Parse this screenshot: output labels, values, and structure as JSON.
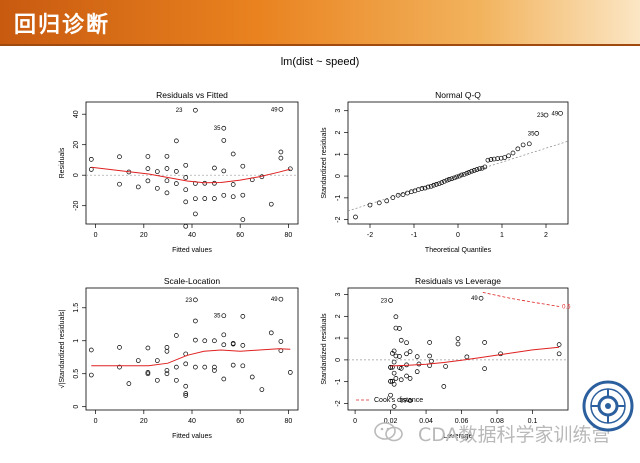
{
  "slide": {
    "title": "回归诊断"
  },
  "figure": {
    "title": "lm(dist ~ speed)"
  },
  "watermark": {
    "text": "CDA数据科学家训练营",
    "logo_icon": "wechat-bubble-icon",
    "seal_icon": "university-seal-icon"
  },
  "colors": {
    "header_start": "#c85a10",
    "header_end": "#fbe6c4",
    "smooth_line": "#e02020",
    "points": "#000000",
    "reference_line": "#888888"
  },
  "chart_data": [
    {
      "type": "scatter",
      "title": "Residuals vs Fitted",
      "xlabel": "Fitted values",
      "ylabel": "Residuals",
      "xlim": [
        -4,
        84
      ],
      "ylim": [
        -32,
        48
      ],
      "xticks": [
        0,
        20,
        40,
        60,
        80
      ],
      "yticks": [
        -20,
        0,
        20,
        40
      ],
      "points": [
        [
          -1.8,
          3.8
        ],
        [
          -1.8,
          10.4
        ],
        [
          9.9,
          -5.9
        ],
        [
          9.9,
          12.1
        ],
        [
          13.8,
          2.1
        ],
        [
          17.7,
          -7.7
        ],
        [
          21.7,
          -3.7
        ],
        [
          21.7,
          4.3
        ],
        [
          21.7,
          12.3
        ],
        [
          25.6,
          -8.6
        ],
        [
          25.6,
          2.4
        ],
        [
          29.6,
          -11.6
        ],
        [
          29.6,
          -3.6
        ],
        [
          29.6,
          4.4
        ],
        [
          29.6,
          12.4
        ],
        [
          33.5,
          -5.5
        ],
        [
          33.5,
          2.5
        ],
        [
          33.5,
          22.5
        ],
        [
          37.4,
          -33.5
        ],
        [
          37.4,
          -17.5
        ],
        [
          37.4,
          -9.5
        ],
        [
          37.4,
          -1.5
        ],
        [
          37.4,
          6.5
        ],
        [
          41.4,
          -25.4
        ],
        [
          41.4,
          -15.4
        ],
        [
          41.4,
          -5.4
        ],
        [
          41.4,
          42.6
        ],
        [
          45.3,
          -15.3
        ],
        [
          45.3,
          -5.3
        ],
        [
          49.3,
          -15.3
        ],
        [
          49.3,
          -5.3
        ],
        [
          49.3,
          4.7
        ],
        [
          53.2,
          -13.2
        ],
        [
          53.2,
          2.8
        ],
        [
          53.2,
          22.8
        ],
        [
          53.2,
          30.8
        ],
        [
          57.1,
          -14.1
        ],
        [
          57.1,
          -6.1
        ],
        [
          57.1,
          13.9
        ],
        [
          61.1,
          -29.1
        ],
        [
          61.1,
          -13.1
        ],
        [
          61.1,
          5.9
        ],
        [
          65.0,
          -3.0
        ],
        [
          69.0,
          -1.0
        ],
        [
          72.9,
          -19.0
        ],
        [
          76.9,
          11.2
        ],
        [
          76.9,
          15.2
        ],
        [
          76.9,
          43.2
        ],
        [
          80.8,
          4.2
        ]
      ],
      "smooth": [
        [
          -1.8,
          5.2
        ],
        [
          10,
          3.0
        ],
        [
          22,
          0.8
        ],
        [
          30,
          -1.5
        ],
        [
          38,
          -3.8
        ],
        [
          45,
          -5.0
        ],
        [
          52,
          -4.8
        ],
        [
          60,
          -3.2
        ],
        [
          68,
          -1.0
        ],
        [
          76,
          2.0
        ],
        [
          80.8,
          4.0
        ]
      ],
      "labels": [
        {
          "text": "23",
          "x": 37.4,
          "y": 42.6
        },
        {
          "text": "35",
          "x": 53.2,
          "y": 30.8
        },
        {
          "text": "49",
          "x": 76.9,
          "y": 43.2
        }
      ]
    },
    {
      "type": "scatter",
      "title": "Normal Q-Q",
      "xlabel": "Theoretical Quantiles",
      "ylabel": "Standardized residuals",
      "xlim": [
        -2.5,
        2.5
      ],
      "ylim": [
        -2.2,
        3.4
      ],
      "xticks": [
        -2,
        -1,
        0,
        1,
        2
      ],
      "yticks": [
        -2,
        -1,
        0,
        1,
        2,
        3
      ],
      "points": [
        [
          -2.33,
          -1.88
        ],
        [
          -2.0,
          -1.33
        ],
        [
          -1.79,
          -1.23
        ],
        [
          -1.62,
          -1.14
        ],
        [
          -1.48,
          -0.99
        ],
        [
          -1.36,
          -0.88
        ],
        [
          -1.25,
          -0.85
        ],
        [
          -1.15,
          -0.78
        ],
        [
          -1.06,
          -0.72
        ],
        [
          -0.98,
          -0.68
        ],
        [
          -0.9,
          -0.62
        ],
        [
          -0.82,
          -0.57
        ],
        [
          -0.75,
          -0.55
        ],
        [
          -0.68,
          -0.5
        ],
        [
          -0.61,
          -0.47
        ],
        [
          -0.55,
          -0.42
        ],
        [
          -0.49,
          -0.38
        ],
        [
          -0.43,
          -0.35
        ],
        [
          -0.37,
          -0.3
        ],
        [
          -0.31,
          -0.24
        ],
        [
          -0.25,
          -0.19
        ],
        [
          -0.2,
          -0.15
        ],
        [
          -0.14,
          -0.12
        ],
        [
          -0.08,
          -0.08
        ],
        [
          -0.03,
          -0.04
        ],
        [
          0.03,
          0.0
        ],
        [
          0.08,
          0.05
        ],
        [
          0.14,
          0.08
        ],
        [
          0.2,
          0.13
        ],
        [
          0.25,
          0.17
        ],
        [
          0.31,
          0.22
        ],
        [
          0.37,
          0.26
        ],
        [
          0.43,
          0.3
        ],
        [
          0.49,
          0.34
        ],
        [
          0.55,
          0.36
        ],
        [
          0.61,
          0.42
        ],
        [
          0.68,
          0.73
        ],
        [
          0.75,
          0.76
        ],
        [
          0.82,
          0.78
        ],
        [
          0.9,
          0.8
        ],
        [
          0.98,
          0.82
        ],
        [
          1.06,
          0.85
        ],
        [
          1.15,
          0.93
        ],
        [
          1.25,
          1.06
        ],
        [
          1.36,
          1.25
        ],
        [
          1.48,
          1.43
        ],
        [
          1.62,
          1.48
        ],
        [
          1.79,
          1.96
        ],
        [
          2.0,
          2.8
        ],
        [
          2.33,
          2.88
        ]
      ],
      "reference_line": [
        [
          -2.5,
          -1.6
        ],
        [
          2.5,
          1.6
        ]
      ],
      "labels": [
        {
          "text": "35",
          "x": 1.79,
          "y": 1.96
        },
        {
          "text": "23",
          "x": 2.0,
          "y": 2.8
        },
        {
          "text": "49",
          "x": 2.33,
          "y": 2.88
        }
      ]
    },
    {
      "type": "scatter",
      "title": "Scale-Location",
      "xlabel": "Fitted values",
      "ylabel": "√|Standardized residuals|",
      "xlim": [
        -4,
        84
      ],
      "ylim": [
        -0.05,
        1.8
      ],
      "xticks": [
        0,
        20,
        40,
        60,
        80
      ],
      "yticks": [
        0.0,
        0.5,
        1.0,
        1.5
      ],
      "points": [
        [
          -1.8,
          0.48
        ],
        [
          -1.8,
          0.86
        ],
        [
          9.9,
          0.6
        ],
        [
          9.9,
          0.9
        ],
        [
          13.8,
          0.35
        ],
        [
          17.7,
          0.7
        ],
        [
          21.7,
          0.5
        ],
        [
          21.7,
          0.52
        ],
        [
          21.7,
          0.89
        ],
        [
          25.6,
          0.7
        ],
        [
          25.6,
          0.4
        ],
        [
          29.6,
          0.84
        ],
        [
          29.6,
          0.5
        ],
        [
          29.6,
          0.55
        ],
        [
          29.6,
          0.9
        ],
        [
          33.5,
          0.6
        ],
        [
          33.5,
          0.4
        ],
        [
          33.5,
          1.08
        ],
        [
          37.4,
          0.2
        ],
        [
          37.4,
          0.17
        ],
        [
          37.4,
          0.8
        ],
        [
          37.4,
          0.31
        ],
        [
          37.4,
          0.65
        ],
        [
          41.4,
          1.3
        ],
        [
          41.4,
          1.01
        ],
        [
          41.4,
          0.6
        ],
        [
          41.4,
          1.62
        ],
        [
          45.3,
          1.0
        ],
        [
          45.3,
          0.6
        ],
        [
          49.3,
          1.0
        ],
        [
          49.3,
          0.6
        ],
        [
          49.3,
          0.55
        ],
        [
          53.2,
          0.94
        ],
        [
          53.2,
          0.42
        ],
        [
          53.2,
          1.09
        ],
        [
          53.2,
          1.38
        ],
        [
          57.1,
          0.96
        ],
        [
          57.1,
          0.63
        ],
        [
          57.1,
          0.95
        ],
        [
          61.1,
          1.37
        ],
        [
          61.1,
          0.93
        ],
        [
          61.1,
          0.62
        ],
        [
          65.0,
          0.45
        ],
        [
          69.0,
          0.26
        ],
        [
          72.9,
          1.12
        ],
        [
          76.9,
          0.85
        ],
        [
          76.9,
          0.99
        ],
        [
          76.9,
          1.63
        ],
        [
          80.8,
          0.52
        ]
      ],
      "smooth": [
        [
          -1.8,
          0.62
        ],
        [
          10,
          0.62
        ],
        [
          22,
          0.62
        ],
        [
          30,
          0.66
        ],
        [
          38,
          0.78
        ],
        [
          45,
          0.84
        ],
        [
          52,
          0.86
        ],
        [
          60,
          0.84
        ],
        [
          68,
          0.86
        ],
        [
          76,
          0.88
        ],
        [
          80.8,
          0.87
        ]
      ],
      "labels": [
        {
          "text": "23",
          "x": 41.4,
          "y": 1.62
        },
        {
          "text": "35",
          "x": 53.2,
          "y": 1.38
        },
        {
          "text": "49",
          "x": 76.9,
          "y": 1.63
        }
      ]
    },
    {
      "type": "scatter",
      "title": "Residuals vs Leverage",
      "xlabel": "Leverage",
      "ylabel": "Standardized residuals",
      "xlim": [
        -0.004,
        0.12
      ],
      "ylim": [
        -2.3,
        3.3
      ],
      "xticks": [
        0.0,
        0.02,
        0.04,
        0.06,
        0.08,
        0.1
      ],
      "yticks": [
        -2,
        -1,
        0,
        1,
        2,
        3
      ],
      "points": [
        [
          0.115,
          0.28
        ],
        [
          0.115,
          0.7
        ],
        [
          0.073,
          -0.4
        ],
        [
          0.073,
          0.8
        ],
        [
          0.063,
          0.14
        ],
        [
          0.051,
          -0.3
        ],
        [
          0.042,
          -0.26
        ],
        [
          0.042,
          0.18
        ],
        [
          0.042,
          0.8
        ],
        [
          0.035,
          -0.54
        ],
        [
          0.035,
          0.15
        ],
        [
          0.029,
          -0.74
        ],
        [
          0.029,
          -0.23
        ],
        [
          0.029,
          0.28
        ],
        [
          0.029,
          0.79
        ],
        [
          0.025,
          -0.35
        ],
        [
          0.025,
          0.16
        ],
        [
          0.025,
          1.44
        ],
        [
          0.022,
          -2.14
        ],
        [
          0.022,
          -1.12
        ],
        [
          0.022,
          -0.61
        ],
        [
          0.022,
          -0.1
        ],
        [
          0.022,
          0.41
        ],
        [
          0.02,
          -1.62
        ],
        [
          0.02,
          -0.99
        ],
        [
          0.02,
          -0.35
        ],
        [
          0.02,
          2.73
        ],
        [
          0.02,
          -0.98
        ],
        [
          0.02,
          -0.34
        ],
        [
          0.021,
          -0.98
        ],
        [
          0.021,
          -0.34
        ],
        [
          0.021,
          0.3
        ],
        [
          0.023,
          -0.85
        ],
        [
          0.023,
          0.18
        ],
        [
          0.023,
          1.46
        ],
        [
          0.023,
          1.98
        ],
        [
          0.026,
          -0.91
        ],
        [
          0.026,
          -0.39
        ],
        [
          0.026,
          0.9
        ],
        [
          0.031,
          -1.87
        ],
        [
          0.031,
          -0.85
        ],
        [
          0.031,
          0.38
        ],
        [
          0.036,
          -0.19
        ],
        [
          0.043,
          -0.06
        ],
        [
          0.05,
          -1.22
        ],
        [
          0.058,
          0.73
        ],
        [
          0.058,
          0.98
        ],
        [
          0.071,
          2.83
        ],
        [
          0.082,
          0.28
        ]
      ],
      "smooth": [
        [
          0.02,
          -0.28
        ],
        [
          0.03,
          -0.25
        ],
        [
          0.04,
          -0.2
        ],
        [
          0.05,
          -0.12
        ],
        [
          0.06,
          -0.02
        ],
        [
          0.07,
          0.1
        ],
        [
          0.08,
          0.22
        ],
        [
          0.09,
          0.34
        ],
        [
          0.1,
          0.46
        ],
        [
          0.115,
          0.58
        ]
      ],
      "cooks_line": [
        [
          0.072,
          3.1
        ],
        [
          0.088,
          2.82
        ],
        [
          0.104,
          2.6
        ],
        [
          0.115,
          2.45
        ]
      ],
      "cooks_label": "0.5",
      "legend": "Cook's distance",
      "labels": [
        {
          "text": "49",
          "x": 0.071,
          "y": 2.83
        },
        {
          "text": "23",
          "x": 0.02,
          "y": 2.73
        },
        {
          "text": "39",
          "x": 0.031,
          "y": -1.87
        }
      ]
    }
  ]
}
